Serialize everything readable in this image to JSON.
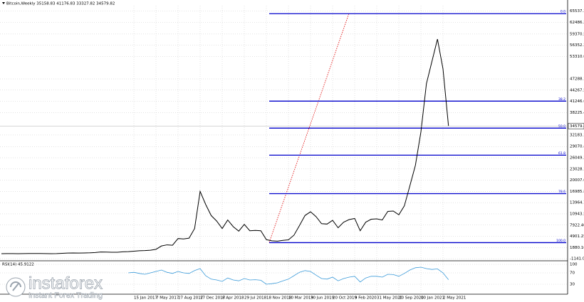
{
  "chart_data": [
    {
      "type": "line",
      "title": "Bitcoin,Weekly  35158.83 41176.83 33327.82 34579.82",
      "categories": [
        null,
        null,
        null,
        null,
        null,
        null,
        null,
        null,
        null,
        null,
        null,
        null,
        null,
        null,
        null,
        null,
        null,
        null,
        null,
        null,
        null,
        null,
        null,
        null,
        "15 Jan 2017",
        null,
        null,
        null,
        "7 May 2017",
        null,
        null,
        null,
        "27 Aug 2017",
        null,
        null,
        null,
        "17 Dec 2017",
        null,
        null,
        null,
        "8 Apr 2018",
        null,
        null,
        null,
        "29 Jul 2018",
        null,
        null,
        null,
        "18 Nov 2018",
        null,
        null,
        null,
        "10 Mar 2019",
        null,
        null,
        null,
        "30 Jun 2019",
        null,
        null,
        null,
        "20 Oct 2019",
        null,
        null,
        null,
        "9 Feb 2020",
        null,
        null,
        null,
        "31 May 2020",
        null,
        null,
        null,
        "20 Sep 2020",
        null,
        null,
        null,
        "10 Jan 2021",
        null,
        null,
        null,
        "2 May 2021",
        null
      ],
      "values": [
        230,
        250,
        240,
        230,
        240,
        260,
        280,
        270,
        240,
        230,
        250,
        330,
        380,
        420,
        400,
        420,
        450,
        530,
        680,
        650,
        600,
        610,
        720,
        780,
        900,
        1000,
        1050,
        1150,
        1400,
        2300,
        2600,
        2500,
        4300,
        4200,
        4400,
        7000,
        17000,
        13500,
        10500,
        9000,
        7000,
        9300,
        7500,
        6300,
        8100,
        6400,
        6500,
        6400,
        4000,
        3700,
        3600,
        3800,
        3950,
        5200,
        7800,
        10500,
        11500,
        10200,
        8300,
        8200,
        9200,
        7200,
        8700,
        9400,
        9700,
        6400,
        8700,
        9500,
        9600,
        9300,
        11600,
        11700,
        10700,
        13100,
        18500,
        24000,
        33000,
        46000,
        52000,
        58000,
        50000,
        34579.82
      ],
      "color": "#000000",
      "last_price": 34579.82,
      "ylim": [
        -1500,
        67000
      ],
      "yticks": [
        65537.35,
        {
          "value": 62486.2,
          "label": "62486.20"
        },
        {
          "value": 59370.5,
          "label": "59370.50"
        },
        56352.35,
        53310.05,
        {
          "value": 47288.1,
          "label": "47288.10"
        },
        44267.55,
        {
          "value": 41246.6,
          "label": "41246.60"
        },
        38225.45,
        32183.15,
        29070.45,
        {
          "value": 26049.3,
          "label": "26049.30"
        },
        23028.15,
        {
          "value": 20007,
          "label": "20007.00"
        },
        16985.85,
        {
          "value": 13964.7,
          "label": "13964.70"
        },
        10943.55,
        {
          "value": 7922.4,
          "label": "7922.40"
        },
        4901.25,
        {
          "value": 1880.1,
          "label": "1880.10"
        },
        -1141.05
      ],
      "grid": true,
      "fib_color": "#0000cc",
      "fib_levels": [
        {
          "name": "0.0",
          "value": 64850
        },
        {
          "name": "38.2",
          "value": 41300
        },
        {
          "name": "50.0",
          "value": 34025
        },
        {
          "name": "61.8",
          "value": 26750
        },
        {
          "name": "78.6",
          "value": 16393
        },
        {
          "name": "100.0",
          "value": 3200
        }
      ]
    },
    {
      "type": "line",
      "title": "RSI(14) 45.9122",
      "values": [
        null,
        null,
        null,
        null,
        null,
        null,
        null,
        null,
        null,
        null,
        null,
        null,
        null,
        null,
        null,
        null,
        null,
        null,
        null,
        null,
        null,
        null,
        null,
        70,
        72,
        68,
        65,
        70,
        75,
        80,
        72,
        68,
        75,
        70,
        68,
        78,
        85,
        60,
        48,
        45,
        40,
        52,
        45,
        42,
        50,
        45,
        46,
        44,
        30,
        32,
        35,
        42,
        48,
        60,
        72,
        78,
        75,
        62,
        50,
        48,
        55,
        42,
        50,
        55,
        58,
        38,
        52,
        58,
        58,
        55,
        65,
        64,
        58,
        68,
        80,
        88,
        90,
        85,
        82,
        84,
        70,
        45.9122
      ],
      "color": "#3a9ad9",
      "ylim": [
        0,
        100
      ],
      "yticks": [
        100,
        70,
        30
      ]
    }
  ],
  "watermark": {
    "brand": "instaforex",
    "tagline": "Instant Forex Trading"
  }
}
